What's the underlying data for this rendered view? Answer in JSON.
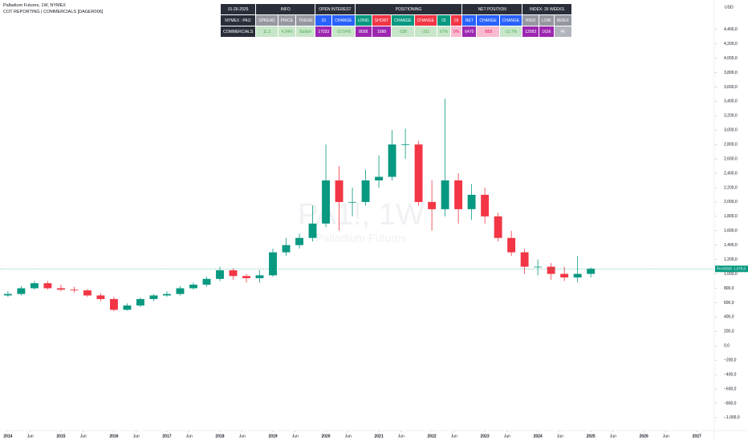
{
  "header": {
    "symbol_line": "Palladium Futures, 1W, NYMEX",
    "indicator_line": "COT REPORTING | COMMERCIALS [DAGER006]"
  },
  "table": {
    "rows": [
      [
        "01-26-2025",
        "INFO",
        "OPEN INTEREST",
        "POSITIONING",
        "NET POSITION",
        "INDEX: 26 WEEKS"
      ],
      [
        "NYMEX : PA1!",
        "SPREAD",
        "PRICE",
        "TREND",
        "OI",
        "CHANGE",
        "LONG",
        "SHORT",
        "CHANGE",
        "CHANGE",
        "OI",
        "OI",
        "NET",
        "CHANGE",
        "CHANGE",
        "HIGH",
        "LOW",
        "INDEX"
      ],
      [
        "COMMERCIALS",
        "11.3",
        "4.34%",
        "Bullish",
        "17033",
        "-10.54%",
        "8058",
        "1588",
        "-538",
        "-311",
        "67%",
        "9%",
        "6470",
        "-858",
        "-11.7%",
        "12083",
        "1636",
        "46"
      ]
    ]
  },
  "chart_data": {
    "type": "candlestick",
    "currency": "USD",
    "watermark": {
      "ticker": "PA1!, 1W",
      "name": "Palladium Futures"
    },
    "last_label": {
      "symbol": "PAH2025",
      "text": "1,070,0"
    },
    "up_color": "#089981",
    "down_color": "#f23645",
    "grid": false,
    "x": [
      2014.0,
      2014.25,
      2014.5,
      2014.75,
      2015.0,
      2015.25,
      2015.5,
      2015.75,
      2016.0,
      2016.25,
      2016.5,
      2016.75,
      2017.0,
      2017.25,
      2017.5,
      2017.75,
      2018.0,
      2018.25,
      2018.5,
      2018.75,
      2019.0,
      2019.25,
      2019.5,
      2019.75,
      2020.0,
      2020.25,
      2020.5,
      2020.75,
      2021.0,
      2021.25,
      2021.5,
      2021.75,
      2022.0,
      2022.25,
      2022.5,
      2022.75,
      2023.0,
      2023.25,
      2023.5,
      2023.75,
      2024.0,
      2024.25,
      2024.5,
      2024.75,
      2025.0
    ],
    "open": [
      700,
      720,
      800,
      870,
      800,
      780,
      770,
      700,
      650,
      500,
      560,
      650,
      700,
      720,
      800,
      850,
      930,
      1050,
      970,
      940,
      980,
      1300,
      1400,
      1500,
      1700,
      2300,
      2000,
      2000,
      2300,
      2350,
      2800,
      2800,
      2000,
      1900,
      2300,
      1900,
      2100,
      1800,
      1500,
      1300,
      1100,
      1100,
      1000,
      950,
      1000
    ],
    "high": [
      760,
      830,
      900,
      900,
      850,
      820,
      790,
      730,
      680,
      590,
      670,
      720,
      760,
      830,
      880,
      960,
      1100,
      1080,
      1000,
      1050,
      1350,
      1500,
      1560,
      1950,
      2800,
      2500,
      2200,
      2450,
      2650,
      3000,
      3020,
      2850,
      2300,
      3440,
      2400,
      2250,
      2200,
      1850,
      1600,
      1350,
      1200,
      1150,
      1100,
      1250,
      1090
    ],
    "low": [
      680,
      700,
      780,
      780,
      760,
      740,
      680,
      620,
      480,
      490,
      540,
      620,
      680,
      700,
      780,
      820,
      900,
      920,
      880,
      880,
      960,
      1250,
      1350,
      1450,
      1650,
      1600,
      1800,
      1950,
      2200,
      2300,
      2600,
      1950,
      1600,
      1800,
      1700,
      1750,
      1700,
      1450,
      1250,
      1000,
      980,
      920,
      900,
      880,
      950
    ],
    "close": [
      720,
      800,
      870,
      800,
      780,
      770,
      700,
      650,
      500,
      560,
      650,
      700,
      720,
      800,
      850,
      930,
      1050,
      970,
      940,
      980,
      1300,
      1400,
      1500,
      1700,
      2300,
      2000,
      2000,
      2300,
      2350,
      2800,
      2800,
      2000,
      1900,
      2300,
      1900,
      2100,
      1800,
      1500,
      1300,
      1100,
      1100,
      1000,
      950,
      1000,
      1070
    ],
    "xlim": [
      2013.85,
      2027.33
    ],
    "xticks": [
      2014,
      {
        "value": 2014.42,
        "label": "Jun"
      },
      2015,
      {
        "value": 2015.42,
        "label": "Jun"
      },
      2016,
      {
        "value": 2016.42,
        "label": "Jun"
      },
      2017,
      {
        "value": 2017.42,
        "label": "Jun"
      },
      2018,
      {
        "value": 2018.42,
        "label": "Jun"
      },
      2019,
      {
        "value": 2019.42,
        "label": "Jun"
      },
      2020,
      {
        "value": 2020.42,
        "label": "Jun"
      },
      2021,
      {
        "value": 2021.42,
        "label": "Jun"
      },
      2022,
      {
        "value": 2022.42,
        "label": "Jun"
      },
      2023,
      {
        "value": 2023.42,
        "label": "Jun"
      },
      2024,
      {
        "value": 2024.42,
        "label": "Jun"
      },
      2025,
      {
        "value": 2025.42,
        "label": "Jun"
      },
      2026,
      {
        "value": 2026.42,
        "label": "Jun"
      },
      2027,
      {
        "value": 2027.42,
        "label": "Jun"
      }
    ],
    "ylim": [
      -1180,
      4810
    ],
    "yticks": [
      {
        "value": 4400,
        "label": "4,400,0"
      },
      {
        "value": 4200,
        "label": "4,200,0"
      },
      {
        "value": 4000,
        "label": "4,000,0"
      },
      {
        "value": 3800,
        "label": "3,800,0"
      },
      {
        "value": 3600,
        "label": "3,600,0"
      },
      {
        "value": 3400,
        "label": "3,400,0"
      },
      {
        "value": 3200,
        "label": "3,200,0"
      },
      {
        "value": 3000,
        "label": "3,000,0"
      },
      {
        "value": 2800,
        "label": "2,800,0"
      },
      {
        "value": 2600,
        "label": "2,600,0"
      },
      {
        "value": 2400,
        "label": "2,400,0"
      },
      {
        "value": 2200,
        "label": "2,200,0"
      },
      {
        "value": 2000,
        "label": "2,000,0"
      },
      {
        "value": 1800,
        "label": "1,800,0"
      },
      {
        "value": 1600,
        "label": "1,600,0"
      },
      {
        "value": 1400,
        "label": "1,400,0"
      },
      {
        "value": 1200,
        "label": "1,200,0"
      },
      {
        "value": 1000,
        "label": "1,000,0"
      },
      {
        "value": 800,
        "label": "800,0"
      },
      {
        "value": 600,
        "label": "600,0"
      },
      {
        "value": 400,
        "label": "400,0"
      },
      {
        "value": 200,
        "label": "200,0"
      },
      {
        "value": 0,
        "label": "0,0"
      },
      {
        "value": -200,
        "label": "−200,0"
      },
      {
        "value": -400,
        "label": "−400,0"
      },
      {
        "value": -600,
        "label": "−600,0"
      },
      {
        "value": -800,
        "label": "−800,0"
      },
      {
        "value": -1000,
        "label": "−1,000,0"
      }
    ]
  }
}
